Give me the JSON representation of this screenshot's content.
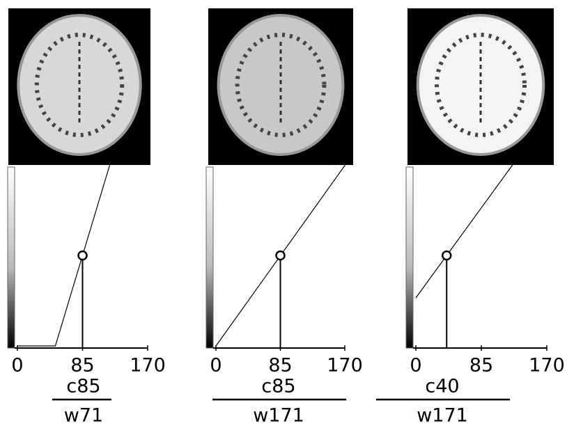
{
  "chart_data": [
    {
      "type": "line",
      "x": [
        0,
        49.5,
        120.5
      ],
      "values": [
        0,
        0,
        1
      ],
      "xlim": [
        0,
        170
      ],
      "ylim": [
        0,
        1
      ],
      "xticks": [
        0,
        85,
        170
      ],
      "marker": {
        "x": 85,
        "y": 0.5
      },
      "center_label": "c85",
      "width_label": "w71",
      "color": "#000000"
    },
    {
      "type": "line",
      "x": [
        0,
        170.5
      ],
      "values": [
        0,
        1
      ],
      "xlim": [
        0,
        170
      ],
      "ylim": [
        0,
        1
      ],
      "xticks": [
        0,
        85,
        170
      ],
      "marker": {
        "x": 85,
        "y": 0.5
      },
      "center_label": "c85",
      "width_label": "w171",
      "color": "#000000"
    },
    {
      "type": "line",
      "x": [
        0,
        125.5
      ],
      "values": [
        0.266,
        1
      ],
      "xlim": [
        0,
        170
      ],
      "ylim": [
        0,
        1
      ],
      "xticks": [
        0,
        85,
        170
      ],
      "marker": {
        "x": 40,
        "y": 0.5
      },
      "center_label": "c40",
      "width_label": "w171",
      "color": "#000000"
    }
  ]
}
